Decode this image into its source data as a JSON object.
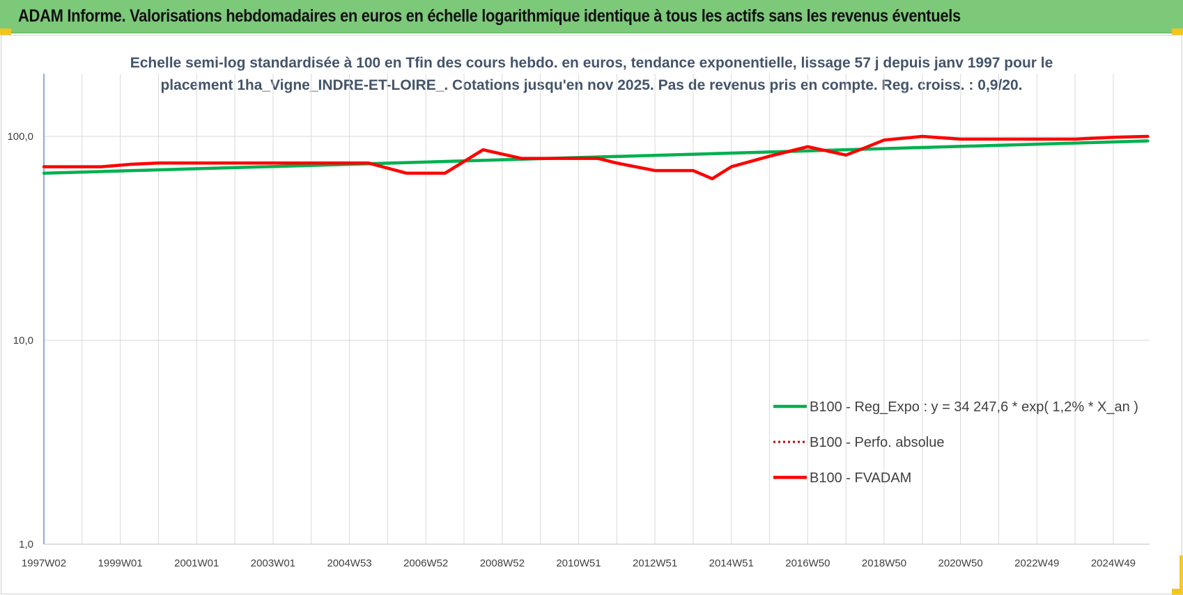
{
  "banner": {
    "title": "ADAM Informe. Valorisations hebdomadaires en euros en échelle logarithmique identique à tous les actifs sans les revenus éventuels"
  },
  "colors": {
    "banner_bg": "#7dc97a",
    "corner_accent": "#f5c518",
    "series_reg": "#00b050",
    "series_fvadam": "#ff0000",
    "series_perfo": "#c00000"
  },
  "chart_data": {
    "type": "line",
    "title_lines": [
      "Echelle semi-log standardisée à 100 en Tfin des cours hebdo. en euros, tendance exponentielle, lissage 57 j depuis janv 1997 pour le",
      "placement 1ha_Vigne_INDRE-ET-LOIRE_. Cotations jusqu'en nov 2025. Pas de revenus pris en compte. Reg. croiss. : 0,9/20."
    ],
    "y_scale": "log",
    "ylim": [
      1,
      200
    ],
    "y_ticks": [
      "100,0",
      "10,0",
      "1,0"
    ],
    "y_tick_values": [
      100,
      10,
      1
    ],
    "xlim": [
      1997.0,
      2025.95
    ],
    "x_ticks": [
      "1997W02",
      "1999W01",
      "2001W01",
      "2003W01",
      "2004W53",
      "2006W52",
      "2008W52",
      "2010W51",
      "2012W51",
      "2014W51",
      "2016W50",
      "2018W50",
      "2020W50",
      "2022W49",
      "2024W49"
    ],
    "x_tick_years": [
      1997.0,
      1999.0,
      2001.0,
      2003.0,
      2005.0,
      2007.0,
      2009.0,
      2011.0,
      2013.0,
      2015.0,
      2017.0,
      2019.0,
      2021.0,
      2023.0,
      2025.0
    ],
    "grid": "vertical",
    "legend_position": "bottom-right",
    "series": [
      {
        "name": "B100 - Reg_Expo : y = 34 247,6 * exp( 1,2% *  X_an )",
        "style": "solid-green",
        "x": [
          1997.0,
          2025.9
        ],
        "y": [
          66,
          95
        ]
      },
      {
        "name": "B100 - Perfo. absolue",
        "style": "dotted-darkred",
        "x": [],
        "y": []
      },
      {
        "name": "B100 - FVADAM",
        "style": "solid-red",
        "x": [
          1997.0,
          1998.5,
          1999.3,
          2000.0,
          2002.0,
          2004.0,
          2005.5,
          2006.5,
          2007.5,
          2008.5,
          2009.5,
          2011.0,
          2011.5,
          2012.0,
          2013.0,
          2014.0,
          2014.5,
          2015.0,
          2016.0,
          2017.0,
          2018.0,
          2018.5,
          2019.0,
          2020.0,
          2021.0,
          2022.0,
          2023.0,
          2024.0,
          2025.0,
          2025.9
        ],
        "y": [
          71,
          71,
          73,
          74,
          74,
          74,
          74,
          66,
          66,
          86,
          78,
          78,
          78,
          74,
          68,
          68,
          62,
          71,
          80,
          89,
          81,
          88,
          96,
          100,
          97,
          97,
          97,
          97,
          99,
          100
        ]
      }
    ]
  }
}
